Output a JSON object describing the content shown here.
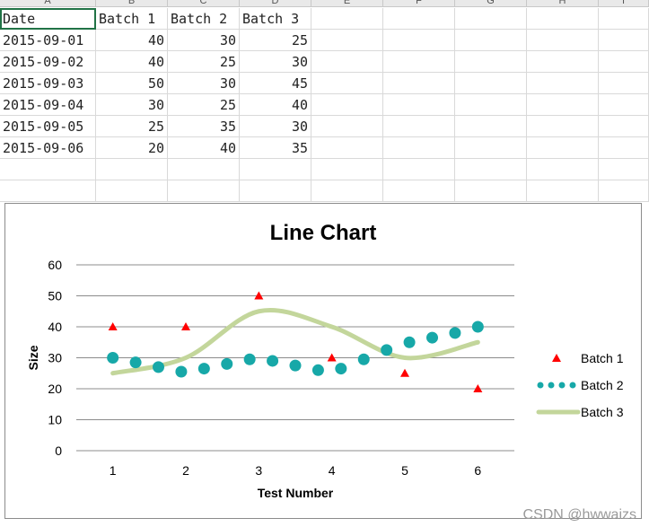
{
  "sheet": {
    "columns": [
      "A",
      "B",
      "C",
      "D",
      "E",
      "F",
      "G",
      "H",
      "I"
    ],
    "header_row": [
      "Date",
      "Batch 1",
      "Batch 2",
      "Batch 3"
    ],
    "rows": [
      [
        "2015-09-01",
        "40",
        "30",
        "25"
      ],
      [
        "2015-09-02",
        "40",
        "25",
        "30"
      ],
      [
        "2015-09-03",
        "50",
        "30",
        "45"
      ],
      [
        "2015-09-04",
        "30",
        "25",
        "40"
      ],
      [
        "2015-09-05",
        "25",
        "35",
        "30"
      ],
      [
        "2015-09-06",
        "20",
        "40",
        "35"
      ]
    ],
    "grid_color": "#d9d9d9",
    "selection_color": "#217346"
  },
  "chart_data": {
    "type": "line",
    "title": "Line Chart",
    "xlabel": "Test Number",
    "ylabel": "Size",
    "xlim": [
      0.5,
      6.5
    ],
    "ylim": [
      0,
      60
    ],
    "x_ticks": [
      1,
      2,
      3,
      4,
      5,
      6
    ],
    "y_ticks": [
      0,
      10,
      20,
      30,
      40,
      50,
      60
    ],
    "grid": true,
    "legend_position": "right",
    "series": [
      {
        "name": "Batch 1",
        "style": "triangle-markers",
        "color": "#ff0000",
        "x": [
          1,
          2,
          3,
          4,
          5,
          6
        ],
        "values": [
          40,
          40,
          50,
          30,
          25,
          20
        ]
      },
      {
        "name": "Batch 2",
        "style": "dotted-circles",
        "color": "#17a8a8",
        "x": [
          1,
          1.3125,
          1.625,
          1.9375,
          2.25,
          2.5625,
          2.875,
          3.1875,
          3.5,
          3.8125,
          4.125,
          4.4375,
          4.75,
          5.0625,
          5.375,
          5.6875,
          6
        ],
        "values": [
          30,
          28.5,
          27,
          25.5,
          26.5,
          28,
          29.5,
          29,
          27.5,
          26,
          26.5,
          29.5,
          32.5,
          35,
          36.5,
          38,
          40
        ]
      },
      {
        "name": "Batch 3",
        "style": "smooth-line",
        "color": "#c3d69b",
        "x": [
          1,
          2,
          3,
          4,
          5,
          6
        ],
        "values": [
          25,
          30,
          45,
          40,
          30,
          35
        ]
      }
    ]
  },
  "watermark": "CSDN @hwwaizs"
}
